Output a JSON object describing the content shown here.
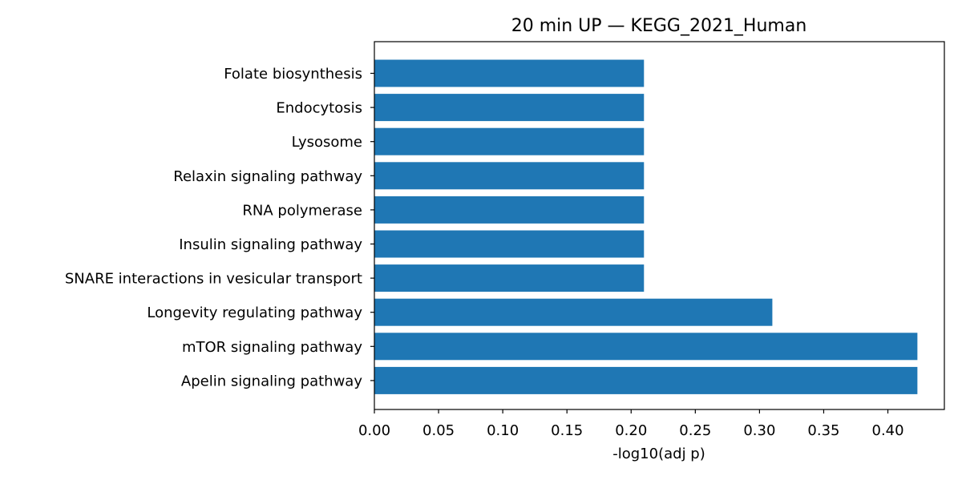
{
  "chart_data": {
    "type": "bar",
    "orientation": "horizontal",
    "title": "20 min UP — KEGG_2021_Human",
    "xlabel": "-log10(adj p)",
    "ylabel": "",
    "categories": [
      "Folate biosynthesis",
      "Endocytosis",
      "Lysosome",
      "Relaxin signaling pathway",
      "RNA polymerase",
      "Insulin signaling pathway",
      "SNARE interactions in vesicular transport",
      "Longevity regulating pathway",
      "mTOR signaling pathway",
      "Apelin signaling pathway"
    ],
    "values": [
      0.21,
      0.21,
      0.21,
      0.21,
      0.21,
      0.21,
      0.21,
      0.31,
      0.423,
      0.423
    ],
    "xlim": [
      0,
      0.444
    ],
    "xticks": [
      0.0,
      0.05,
      0.1,
      0.15,
      0.2,
      0.25,
      0.3,
      0.35,
      0.4
    ],
    "xtick_labels": [
      "0.00",
      "0.05",
      "0.10",
      "0.15",
      "0.20",
      "0.25",
      "0.30",
      "0.35",
      "0.40"
    ],
    "grid": false,
    "legend": "none",
    "bar_color": "#1f77b4"
  }
}
